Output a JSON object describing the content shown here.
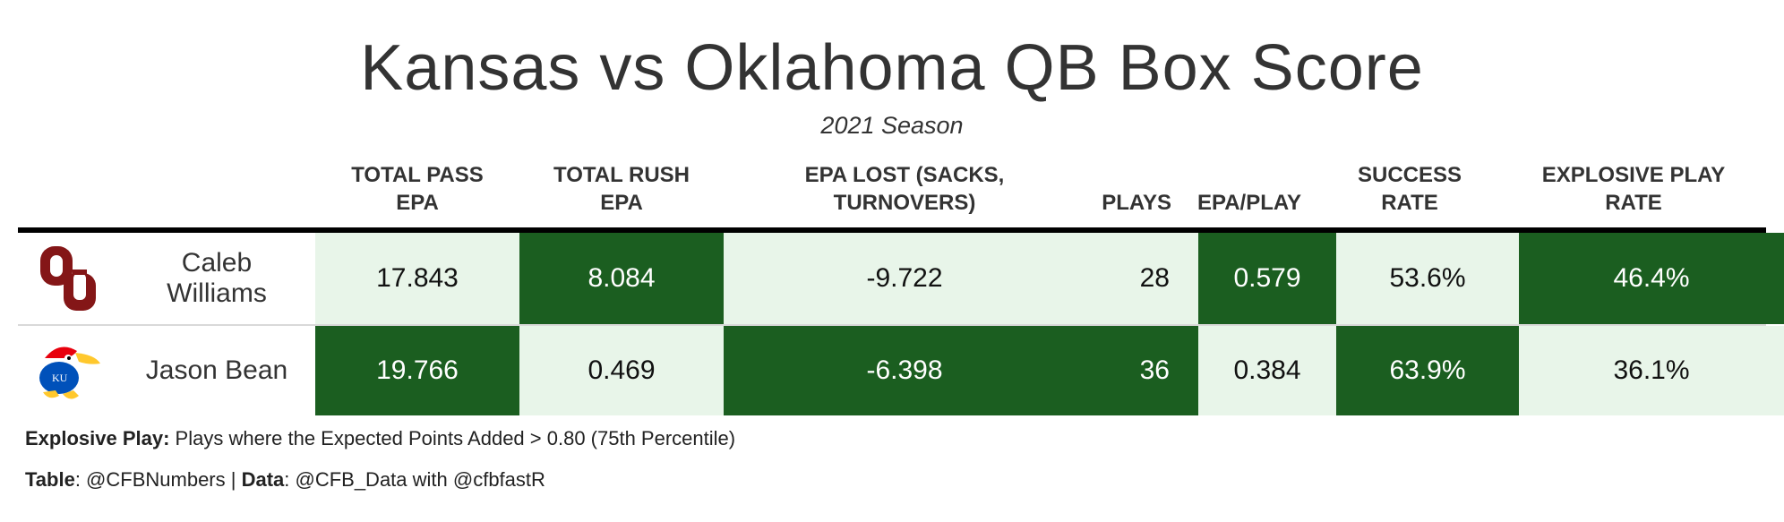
{
  "title": "Kansas vs Oklahoma QB Box Score",
  "subtitle": "2021 Season",
  "columns": {
    "pass_epa": [
      "TOTAL PASS",
      "EPA"
    ],
    "rush_epa": [
      "TOTAL RUSH",
      "EPA"
    ],
    "epa_lost": [
      "EPA LOST (SACKS,",
      "TURNOVERS)"
    ],
    "plays": "PLAYS",
    "epa_play": "EPA/PLAY",
    "success": [
      "SUCCESS",
      "RATE"
    ],
    "explosive": [
      "EXPLOSIVE PLAY",
      "RATE"
    ]
  },
  "rows": [
    {
      "team_logo": "oklahoma-ou-logo",
      "team_color": "#841617",
      "player_line1": "Caleb",
      "player_line2": "Williams",
      "pass_epa": "17.843",
      "rush_epa": "8.084",
      "epa_lost": "-9.722",
      "plays": "28",
      "epa_play": "0.579",
      "success_rate": "53.6%",
      "explosive_rate": "46.4%"
    },
    {
      "team_logo": "kansas-jayhawk-logo",
      "team_color": "#0051ba",
      "player_line1": "Jason Bean",
      "player_line2": "",
      "pass_epa": "19.766",
      "rush_epa": "0.469",
      "epa_lost": "-6.398",
      "plays": "36",
      "epa_play": "0.384",
      "success_rate": "63.9%",
      "explosive_rate": "36.1%"
    }
  ],
  "footnotes": {
    "explosive_label": "Explosive Play:",
    "explosive_text": " Plays where the Expected Points Added > 0.80 (75th Percentile)",
    "table_label": "Table",
    "table_text": ": @CFBNumbers | ",
    "data_label": "Data",
    "data_text": ": @CFB_Data with @cfbfastR"
  },
  "colors": {
    "dark_cell": "#1b5e20",
    "light_cell": "#e8f5e9",
    "header_rule": "#000000"
  }
}
